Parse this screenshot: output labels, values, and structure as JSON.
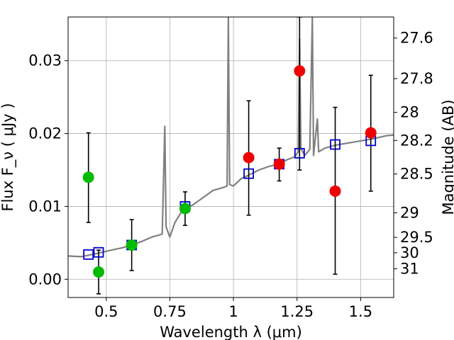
{
  "chart_data": {
    "type": "scatter",
    "xlabel": "Wavelength  λ (μm)",
    "ylabel": "Flux  F_ν  ( μJy )",
    "ylabel_right": "Magnitude (AB)",
    "xlim": [
      0.35,
      1.63
    ],
    "ylim": [
      -0.0025,
      0.036
    ],
    "grid": true,
    "x_ticks": [
      {
        "value": 0.5,
        "label": "0.5"
      },
      {
        "value": 0.75,
        "label": "0.75"
      },
      {
        "value": 1.0,
        "label": "1"
      },
      {
        "value": 1.25,
        "label": "1.25"
      },
      {
        "value": 1.5,
        "label": "1.5"
      }
    ],
    "y_ticks": [
      {
        "value": 0.0,
        "label": "0.00"
      },
      {
        "value": 0.01,
        "label": "0.01"
      },
      {
        "value": 0.02,
        "label": "0.02"
      },
      {
        "value": 0.03,
        "label": "0.03"
      }
    ],
    "right_ticks": [
      {
        "mag": 27.6,
        "label": "27.6"
      },
      {
        "mag": 27.8,
        "label": "27.8"
      },
      {
        "mag": 28.0,
        "label": "28"
      },
      {
        "mag": 28.2,
        "label": "28.2"
      },
      {
        "mag": 28.5,
        "label": "28.5"
      },
      {
        "mag": 29.0,
        "label": "29"
      },
      {
        "mag": 29.5,
        "label": "29.5"
      },
      {
        "mag": 30.0,
        "label": "30"
      },
      {
        "mag": 31.0,
        "label": "31"
      }
    ],
    "model_spectrum": {
      "color": "#808080",
      "points": [
        [
          0.35,
          0.0032
        ],
        [
          0.4,
          0.0031
        ],
        [
          0.43,
          0.0033
        ],
        [
          0.47,
          0.0036
        ],
        [
          0.52,
          0.004
        ],
        [
          0.56,
          0.0043
        ],
        [
          0.6,
          0.0047
        ],
        [
          0.64,
          0.0052
        ],
        [
          0.68,
          0.0058
        ],
        [
          0.72,
          0.0062
        ],
        [
          0.73,
          0.021
        ],
        [
          0.735,
          0.0072
        ],
        [
          0.75,
          0.0058
        ],
        [
          0.77,
          0.0078
        ],
        [
          0.8,
          0.0095
        ],
        [
          0.84,
          0.0102
        ],
        [
          0.88,
          0.0112
        ],
        [
          0.92,
          0.0122
        ],
        [
          0.96,
          0.0126
        ],
        [
          0.975,
          0.0128
        ],
        [
          0.98,
          0.036
        ],
        [
          0.985,
          0.013
        ],
        [
          1.0,
          0.0128
        ],
        [
          1.03,
          0.0138
        ],
        [
          1.06,
          0.0143
        ],
        [
          1.1,
          0.015
        ],
        [
          1.14,
          0.0155
        ],
        [
          1.18,
          0.0158
        ],
        [
          1.21,
          0.0164
        ],
        [
          1.24,
          0.0168
        ],
        [
          1.255,
          0.0175
        ],
        [
          1.26,
          0.033
        ],
        [
          1.265,
          0.018
        ],
        [
          1.28,
          0.017
        ],
        [
          1.3,
          0.0178
        ],
        [
          1.31,
          0.036
        ],
        [
          1.315,
          0.017
        ],
        [
          1.33,
          0.022
        ],
        [
          1.335,
          0.0175
        ],
        [
          1.36,
          0.018
        ],
        [
          1.4,
          0.0184
        ],
        [
          1.45,
          0.0187
        ],
        [
          1.5,
          0.019
        ],
        [
          1.55,
          0.0193
        ],
        [
          1.6,
          0.0197
        ],
        [
          1.63,
          0.0198
        ]
      ]
    },
    "series": [
      {
        "name": "",
        "marker": "open-square",
        "color": "#0000cc",
        "points": [
          {
            "x": 0.43,
            "y": 0.0034
          },
          {
            "x": 0.47,
            "y": 0.0037
          },
          {
            "x": 0.6,
            "y": 0.0047
          },
          {
            "x": 0.81,
            "y": 0.01
          },
          {
            "x": 1.06,
            "y": 0.0145
          },
          {
            "x": 1.18,
            "y": 0.0158
          },
          {
            "x": 1.26,
            "y": 0.0173
          },
          {
            "x": 1.4,
            "y": 0.0185
          },
          {
            "x": 1.54,
            "y": 0.019
          }
        ]
      },
      {
        "name": "",
        "marker": "filled-circle",
        "color": "#00bb00",
        "points": [
          {
            "x": 0.43,
            "y": 0.014,
            "ylo": 0.0078,
            "yhi": 0.0201
          },
          {
            "x": 0.47,
            "y": 0.001,
            "ylo": -0.002,
            "yhi": 0.004
          },
          {
            "x": 0.6,
            "y": 0.0047,
            "ylo": 0.0012,
            "yhi": 0.0082
          },
          {
            "x": 0.81,
            "y": 0.0097,
            "ylo": 0.0074,
            "yhi": 0.012
          }
        ]
      },
      {
        "name": "",
        "marker": "filled-circle",
        "color": "#ee0000",
        "points": [
          {
            "x": 1.06,
            "y": 0.0167,
            "ylo": 0.0088,
            "yhi": 0.0245
          },
          {
            "x": 1.18,
            "y": 0.0158,
            "ylo": 0.0135,
            "yhi": 0.018
          },
          {
            "x": 1.26,
            "y": 0.0286,
            "ylo": 0.015,
            "yhi": 0.036
          },
          {
            "x": 1.4,
            "y": 0.0121,
            "ylo": 0.0007,
            "yhi": 0.0236
          },
          {
            "x": 1.54,
            "y": 0.0201,
            "ylo": 0.0121,
            "yhi": 0.028
          }
        ]
      }
    ]
  }
}
